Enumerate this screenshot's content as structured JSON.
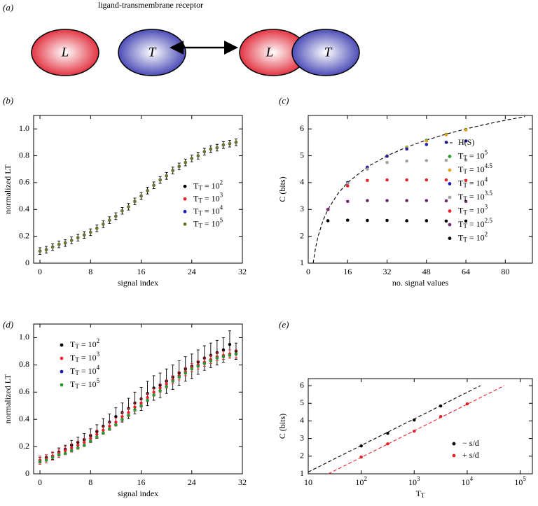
{
  "diagram": {
    "panel_label": "(a)",
    "title": "ligand-transmembrane receptor",
    "free": {
      "ligand": "L",
      "receptor": "T"
    },
    "complex": {
      "ligand": "L",
      "receptor": "T"
    }
  },
  "chart_data": [
    {
      "type": "scatter",
      "panel_label": "(b)",
      "x_label": "signal index",
      "y_label": "normalized LT",
      "xlim": [
        -1,
        32
      ],
      "ylim": [
        0,
        1.1
      ],
      "xticks": [
        0,
        8,
        16,
        24,
        32
      ],
      "yticks": [
        0,
        0.2,
        0.4,
        0.6,
        0.8,
        {
          "value": 1,
          "label": "1.0"
        }
      ],
      "legend": "center right",
      "x": [
        0,
        1,
        2,
        3,
        4,
        5,
        6,
        7,
        8,
        9,
        10,
        11,
        12,
        13,
        14,
        15,
        16,
        17,
        18,
        19,
        20,
        21,
        22,
        23,
        24,
        25,
        26,
        27,
        28,
        29,
        30,
        31
      ],
      "series": [
        {
          "name": "T_T = 10^2",
          "color": "#000000",
          "error": 0.025,
          "values": [
            0.09,
            0.1,
            0.12,
            0.14,
            0.15,
            0.17,
            0.19,
            0.21,
            0.23,
            0.26,
            0.29,
            0.32,
            0.35,
            0.39,
            0.42,
            0.46,
            0.5,
            0.54,
            0.58,
            0.62,
            0.65,
            0.69,
            0.72,
            0.75,
            0.78,
            0.8,
            0.83,
            0.85,
            0.86,
            0.88,
            0.89,
            0.9
          ]
        },
        {
          "name": "T_T = 10^3",
          "color": "#e8202a",
          "values": [
            0.09,
            0.1,
            0.12,
            0.14,
            0.15,
            0.17,
            0.19,
            0.21,
            0.23,
            0.26,
            0.29,
            0.32,
            0.35,
            0.39,
            0.42,
            0.46,
            0.5,
            0.54,
            0.58,
            0.62,
            0.65,
            0.69,
            0.72,
            0.75,
            0.78,
            0.8,
            0.83,
            0.85,
            0.86,
            0.88,
            0.89,
            0.9
          ]
        },
        {
          "name": "T_T = 10^4",
          "color": "#1a1aa8",
          "values": [
            0.09,
            0.1,
            0.12,
            0.14,
            0.15,
            0.17,
            0.19,
            0.21,
            0.23,
            0.26,
            0.29,
            0.32,
            0.35,
            0.39,
            0.42,
            0.46,
            0.5,
            0.54,
            0.58,
            0.62,
            0.65,
            0.69,
            0.72,
            0.75,
            0.78,
            0.8,
            0.83,
            0.85,
            0.86,
            0.88,
            0.89,
            0.9
          ]
        },
        {
          "name": "T_T = 10^5",
          "color": "#6a7a2a",
          "values": [
            0.09,
            0.1,
            0.12,
            0.14,
            0.15,
            0.17,
            0.19,
            0.21,
            0.23,
            0.26,
            0.29,
            0.32,
            0.35,
            0.39,
            0.42,
            0.46,
            0.5,
            0.54,
            0.58,
            0.62,
            0.65,
            0.69,
            0.72,
            0.75,
            0.78,
            0.8,
            0.83,
            0.85,
            0.86,
            0.88,
            0.89,
            0.9
          ]
        }
      ]
    },
    {
      "type": "scatter",
      "panel_label": "(c)",
      "x_label": "no. signal values",
      "y_label": "C (bits)",
      "xlim": [
        0,
        91
      ],
      "ylim": [
        1,
        6.5
      ],
      "xticks": [
        0,
        16,
        32,
        48,
        64,
        80
      ],
      "yticks": [
        1,
        2,
        3,
        4,
        5,
        6
      ],
      "legend": "right",
      "x": [
        8,
        16,
        24,
        32,
        40,
        48,
        56,
        64
      ],
      "series": [
        {
          "name": "H(S)",
          "color": "#000000",
          "line_style": "dashed",
          "x": [
            2,
            3,
            4,
            6,
            8,
            12,
            16,
            24,
            32,
            40,
            48,
            56,
            64,
            72,
            80,
            88
          ],
          "values": [
            1,
            1.585,
            2,
            2.585,
            3,
            3.585,
            4,
            4.585,
            5,
            5.322,
            5.585,
            5.807,
            6,
            6.17,
            6.322,
            6.459
          ]
        },
        {
          "name": "T_T = 10^5",
          "color": "#2a9a2a",
          "error": 0.03,
          "values": [
            3.0,
            4.0,
            4.58,
            5.0,
            5.32,
            5.58,
            5.8,
            5.98
          ]
        },
        {
          "name": "T_T = 10^{4.5}",
          "color": "#e0a020",
          "error": 0.03,
          "values": [
            3.0,
            4.0,
            4.58,
            5.0,
            5.3,
            5.55,
            5.78,
            5.96
          ]
        },
        {
          "name": "T_T = 10^4",
          "color": "#1a1aa8",
          "error": 0.03,
          "values": [
            3.0,
            4.0,
            4.57,
            4.98,
            5.25,
            5.42,
            5.5,
            5.55
          ]
        },
        {
          "name": "T_T = 10^{3.5}",
          "color": "#a0a0a0",
          "error": 0.03,
          "values": [
            3.0,
            3.97,
            4.5,
            4.75,
            4.8,
            4.82,
            4.83,
            4.84
          ]
        },
        {
          "name": "T_T = 10^3",
          "color": "#e8202a",
          "error": 0.03,
          "values": [
            3.0,
            3.88,
            4.08,
            4.1,
            4.1,
            4.1,
            4.1,
            4.08
          ]
        },
        {
          "name": "T_T = 10^{2.5}",
          "color": "#6a2a6a",
          "error": 0.03,
          "values": [
            3.0,
            3.3,
            3.33,
            3.33,
            3.33,
            3.33,
            3.32,
            3.3
          ]
        },
        {
          "name": "T_T = 10^2",
          "color": "#000000",
          "error": 0.03,
          "values": [
            2.58,
            2.6,
            2.59,
            2.59,
            2.58,
            2.58,
            2.57,
            2.57
          ]
        }
      ]
    },
    {
      "type": "scatter",
      "panel_label": "(d)",
      "x_label": "signal index",
      "y_label": "normalized LT",
      "xlim": [
        -1,
        32
      ],
      "ylim": [
        0,
        1.1
      ],
      "xticks": [
        0,
        8,
        16,
        24,
        32
      ],
      "yticks": [
        0,
        0.2,
        0.4,
        0.6,
        0.8,
        {
          "value": 1,
          "label": "1.0"
        }
      ],
      "legend": "upper left",
      "x": [
        0,
        1,
        2,
        3,
        4,
        5,
        6,
        7,
        8,
        9,
        10,
        11,
        12,
        13,
        14,
        15,
        16,
        17,
        18,
        19,
        20,
        21,
        22,
        23,
        24,
        25,
        26,
        27,
        28,
        29,
        30,
        31
      ],
      "series": [
        {
          "name": "T_T = 10^2",
          "color": "#000000",
          "values": [
            0.1,
            0.12,
            0.13,
            0.16,
            0.18,
            0.21,
            0.23,
            0.25,
            0.28,
            0.31,
            0.35,
            0.38,
            0.42,
            0.45,
            0.48,
            0.52,
            0.55,
            0.59,
            0.63,
            0.65,
            0.68,
            0.71,
            0.74,
            0.77,
            0.79,
            0.82,
            0.85,
            0.87,
            0.89,
            0.91,
            0.95,
            0.9
          ],
          "errors": [
            0.02,
            0.02,
            0.025,
            0.03,
            0.03,
            0.035,
            0.04,
            0.045,
            0.05,
            0.05,
            0.055,
            0.06,
            0.065,
            0.07,
            0.075,
            0.08,
            0.085,
            0.09,
            0.09,
            0.09,
            0.09,
            0.09,
            0.09,
            0.09,
            0.09,
            0.09,
            0.09,
            0.09,
            0.09,
            0.09,
            0.1,
            0.06
          ]
        },
        {
          "name": "T_T = 10^3",
          "color": "#e8202a",
          "error": 0.03,
          "values": [
            0.1,
            0.11,
            0.13,
            0.15,
            0.17,
            0.19,
            0.21,
            0.23,
            0.26,
            0.29,
            0.32,
            0.35,
            0.38,
            0.42,
            0.45,
            0.49,
            0.52,
            0.56,
            0.6,
            0.63,
            0.66,
            0.69,
            0.72,
            0.75,
            0.78,
            0.8,
            0.82,
            0.84,
            0.86,
            0.87,
            0.88,
            0.88
          ]
        },
        {
          "name": "T_T = 10^4",
          "color": "#1a1aa8",
          "values": [
            0.09,
            0.1,
            0.12,
            0.14,
            0.15,
            0.17,
            0.19,
            0.21,
            0.24,
            0.27,
            0.3,
            0.33,
            0.36,
            0.4,
            0.43,
            0.47,
            0.5,
            0.54,
            0.58,
            0.61,
            0.64,
            0.68,
            0.71,
            0.74,
            0.77,
            0.79,
            0.81,
            0.83,
            0.85,
            0.86,
            0.87,
            0.88
          ]
        },
        {
          "name": "T_T = 10^5",
          "color": "#2a9a2a",
          "values": [
            0.09,
            0.1,
            0.12,
            0.14,
            0.15,
            0.17,
            0.19,
            0.21,
            0.24,
            0.27,
            0.3,
            0.33,
            0.36,
            0.4,
            0.43,
            0.47,
            0.5,
            0.54,
            0.58,
            0.61,
            0.64,
            0.68,
            0.71,
            0.74,
            0.77,
            0.79,
            0.81,
            0.83,
            0.85,
            0.86,
            0.87,
            0.88
          ]
        }
      ]
    },
    {
      "type": "scatter",
      "panel_label": "(e)",
      "x_label": "T_T",
      "y_label": "C (bits)",
      "xscale": "log",
      "xlim": [
        10,
        170000
      ],
      "ylim": [
        1,
        6.4
      ],
      "xticks": [
        10,
        {
          "value": 100,
          "label": "10^2"
        },
        {
          "value": 1000,
          "label": "10^3"
        },
        {
          "value": 10000,
          "label": "10^4"
        },
        {
          "value": 100000,
          "label": "10^5"
        }
      ],
      "yticks": [
        1,
        2,
        3,
        4,
        5,
        6
      ],
      "legend": "lower right",
      "series": [
        {
          "name": "− s/d",
          "color": "#000000",
          "error": 0.03,
          "x": [
            100,
            316,
            1000,
            3162
          ],
          "values": [
            2.58,
            3.3,
            4.05,
            4.85
          ]
        },
        {
          "name": "+ s/d",
          "color": "#e8202a",
          "error": 0.03,
          "x": [
            100,
            316,
            1000,
            3162,
            10000
          ],
          "values": [
            1.95,
            2.7,
            3.42,
            4.25,
            4.97
          ]
        }
      ],
      "fit_lines": [
        {
          "color": "#000000",
          "x": [
            10,
            17800
          ],
          "values": [
            1.1,
            6.0
          ]
        },
        {
          "color": "#e8202a",
          "x": [
            24,
            50000
          ],
          "values": [
            1.0,
            6.0
          ]
        }
      ]
    }
  ]
}
